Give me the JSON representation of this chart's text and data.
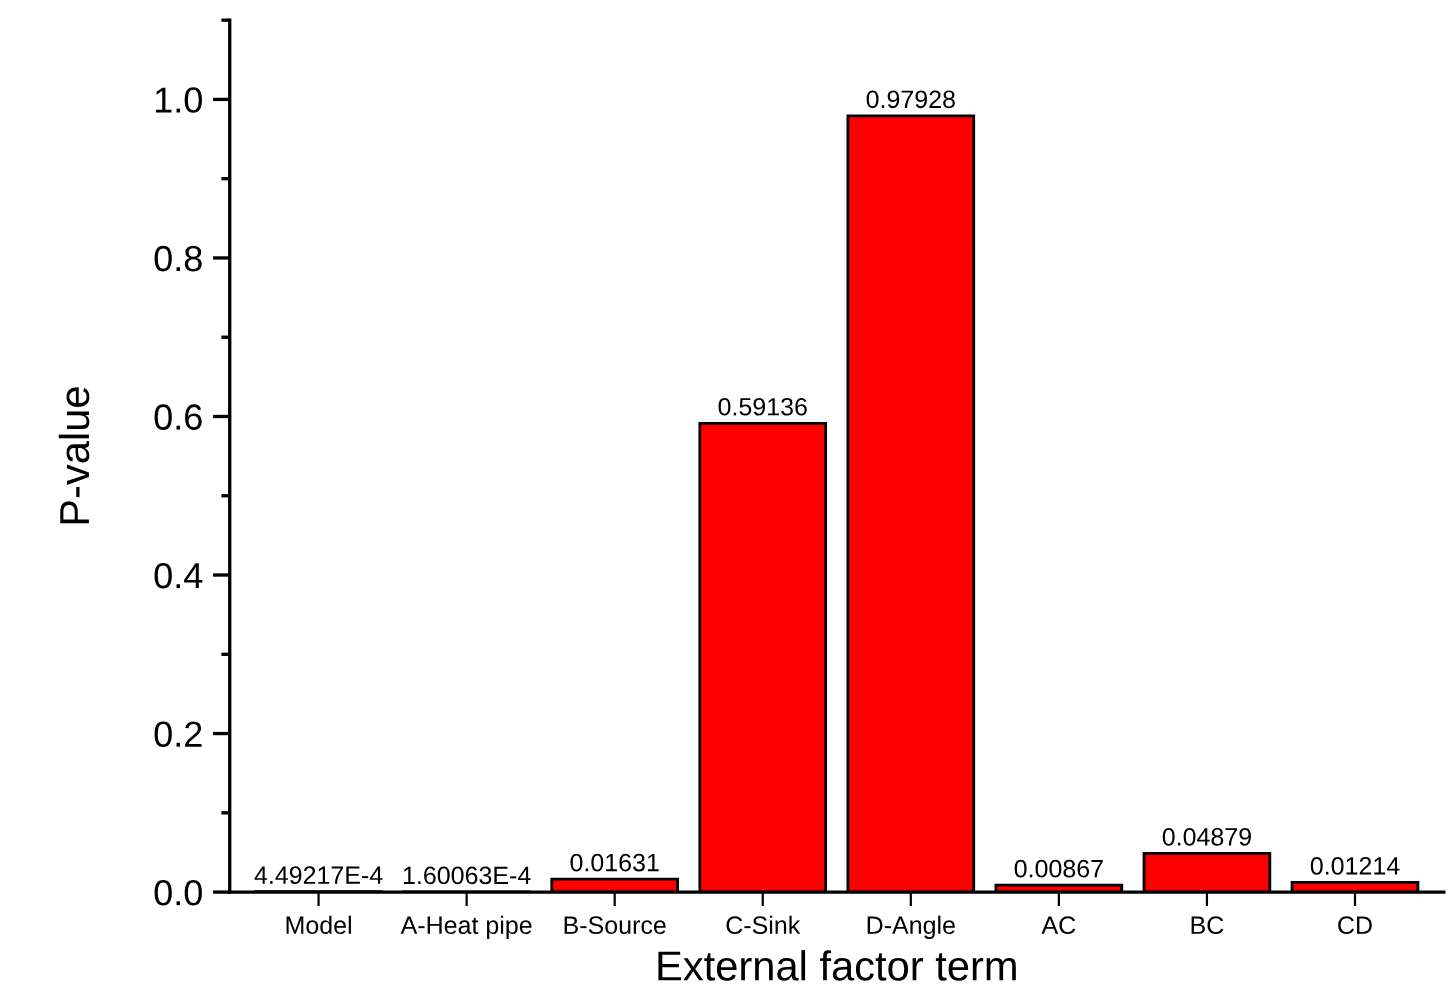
{
  "chart_data": {
    "type": "bar",
    "xlabel": "External factor term",
    "ylabel": "P-value",
    "categories": [
      "Model",
      "A-Heat pipe",
      "B-Source",
      "C-Sink",
      "D-Angle",
      "AC",
      "BC",
      "CD"
    ],
    "values": [
      0.000449217,
      0.000160063,
      0.01631,
      0.59136,
      0.97928,
      0.00867,
      0.04879,
      0.01214
    ],
    "value_labels": [
      "4.49217E-4",
      "1.60063E-4",
      "0.01631",
      "0.59136",
      "0.97928",
      "0.00867",
      "0.04879",
      "0.01214"
    ],
    "color": "#ff0000",
    "ylim": [
      0,
      1.1
    ],
    "yticks": [
      {
        "value": 0,
        "label": "0.0"
      },
      0.2,
      0.4,
      0.6,
      0.8,
      {
        "value": 1,
        "label": "1.0"
      }
    ],
    "grid": false,
    "legend": false
  }
}
